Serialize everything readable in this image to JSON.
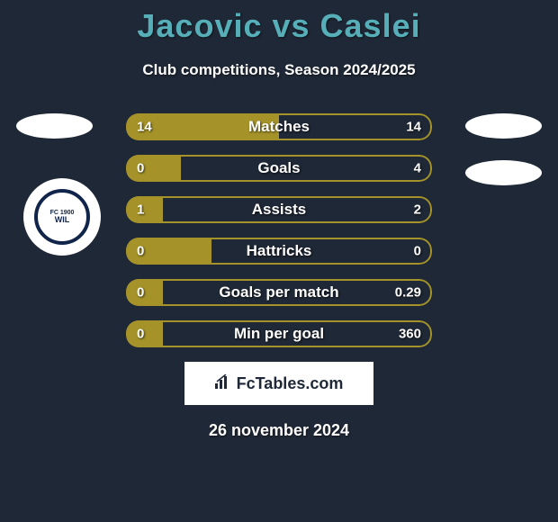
{
  "title": "Jacovic vs Caslei",
  "subtitle": "Club competitions, Season 2024/2025",
  "colors": {
    "background": "#1f2836",
    "title": "#56aeb8",
    "bar_fill": "#a59329",
    "bar_border": "#a59329",
    "text": "#ffffff",
    "footer_box_bg": "#ffffff",
    "footer_box_text": "#1f2836",
    "badge_border": "#11254a"
  },
  "stats": [
    {
      "label": "Matches",
      "left_val": "14",
      "right_val": "14",
      "left_pct": 50,
      "right_pct": 0
    },
    {
      "label": "Goals",
      "left_val": "0",
      "right_val": "4",
      "left_pct": 18,
      "right_pct": 0
    },
    {
      "label": "Assists",
      "left_val": "1",
      "right_val": "2",
      "left_pct": 12,
      "right_pct": 0
    },
    {
      "label": "Hattricks",
      "left_val": "0",
      "right_val": "0",
      "left_pct": 28,
      "right_pct": 0
    },
    {
      "label": "Goals per match",
      "left_val": "0",
      "right_val": "0.29",
      "left_pct": 12,
      "right_pct": 0
    },
    {
      "label": "Min per goal",
      "left_val": "0",
      "right_val": "360",
      "left_pct": 12,
      "right_pct": 0
    }
  ],
  "badge": {
    "top_text": "FC 1900",
    "main_text": "WIL"
  },
  "footer": {
    "brand": "FcTables.com",
    "date": "26 november 2024"
  }
}
